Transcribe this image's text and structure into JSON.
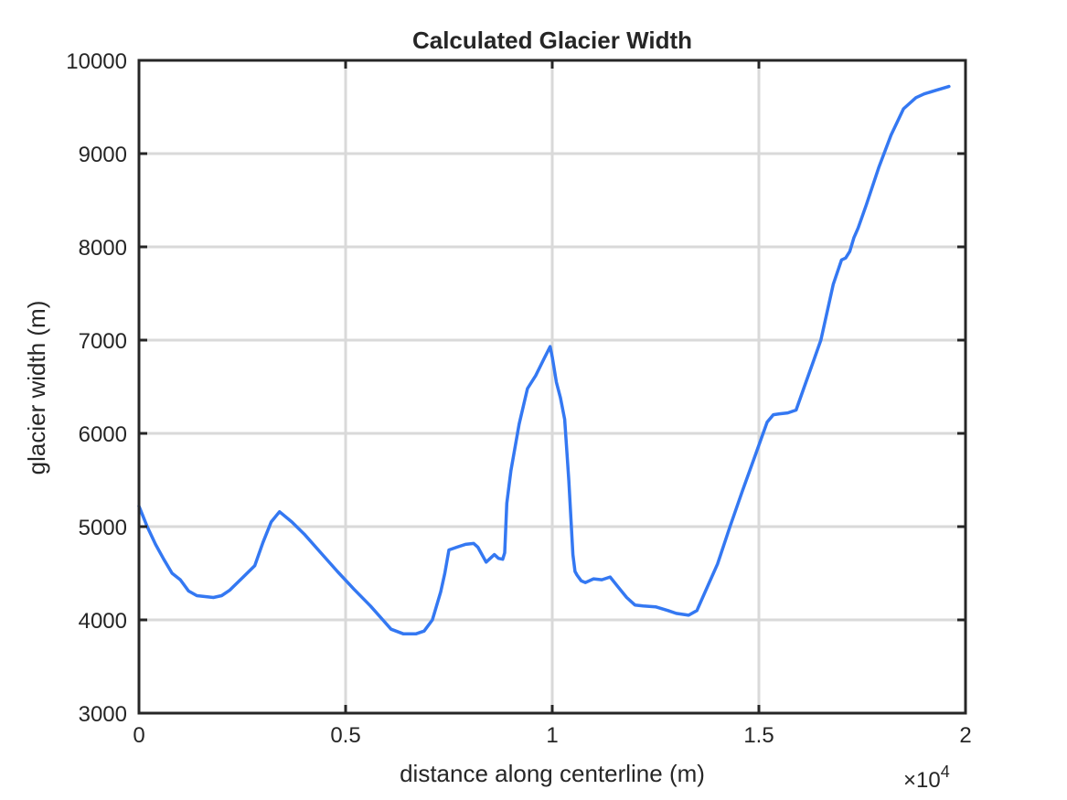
{
  "chart_data": {
    "type": "line",
    "title": "Calculated Glacier Width",
    "xlabel": "distance along centerline (m)",
    "ylabel": "glacier width (m)",
    "xlim": [
      0,
      20000
    ],
    "ylim": [
      3000,
      10000
    ],
    "x_exponent_label": "×10",
    "x_exponent_power": "4",
    "x_ticks": [
      0,
      5000,
      10000,
      15000,
      20000
    ],
    "x_tick_labels": [
      "0",
      "0.5",
      "1",
      "1.5",
      "2"
    ],
    "y_ticks": [
      3000,
      4000,
      5000,
      6000,
      7000,
      8000,
      9000,
      10000
    ],
    "y_tick_labels": [
      "3000",
      "4000",
      "5000",
      "6000",
      "7000",
      "8000",
      "9000",
      "10000"
    ],
    "grid": true,
    "line_color": "#3478f2",
    "series": [
      {
        "x": [
          0,
          200,
          400,
          600,
          800,
          1000,
          1200,
          1400,
          1600,
          1800,
          2000,
          2200,
          2500,
          2800,
          3000,
          3200,
          3400,
          3700,
          4000,
          4400,
          4800,
          5200,
          5600,
          5900,
          6100,
          6400,
          6700,
          6900,
          7100,
          7300,
          7400,
          7500,
          7700,
          7900,
          8100,
          8200,
          8400,
          8600,
          8700,
          8800,
          8850,
          8900,
          9000,
          9200,
          9400,
          9600,
          9800,
          9950,
          10000,
          10100,
          10200,
          10300,
          10400,
          10500,
          10550,
          10600,
          10700,
          10800,
          11000,
          11200,
          11400,
          11600,
          11800,
          12000,
          12200,
          12500,
          12800,
          13000,
          13300,
          13500,
          13700,
          14000,
          14300,
          14600,
          14900,
          15200,
          15350,
          15500,
          15700,
          15900,
          16100,
          16300,
          16500,
          16800,
          17000,
          17100,
          17200,
          17300,
          17400,
          17600,
          17900,
          18200,
          18500,
          18800,
          19000,
          19300,
          19600
        ],
        "y": [
          5220,
          5000,
          4810,
          4650,
          4500,
          4430,
          4310,
          4260,
          4250,
          4240,
          4260,
          4320,
          4450,
          4580,
          4830,
          5050,
          5160,
          5050,
          4920,
          4720,
          4520,
          4330,
          4150,
          4000,
          3900,
          3850,
          3850,
          3880,
          4000,
          4300,
          4500,
          4750,
          4780,
          4810,
          4820,
          4780,
          4620,
          4700,
          4660,
          4650,
          4720,
          5250,
          5600,
          6100,
          6480,
          6620,
          6800,
          6930,
          6820,
          6550,
          6380,
          6150,
          5500,
          4700,
          4520,
          4480,
          4420,
          4400,
          4440,
          4430,
          4460,
          4350,
          4240,
          4160,
          4150,
          4140,
          4100,
          4070,
          4050,
          4100,
          4300,
          4600,
          5000,
          5380,
          5750,
          6120,
          6200,
          6210,
          6220,
          6250,
          6500,
          6750,
          7000,
          7600,
          7860,
          7880,
          7950,
          8100,
          8200,
          8450,
          8850,
          9200,
          9480,
          9600,
          9640,
          9680,
          9720
        ]
      }
    ]
  }
}
